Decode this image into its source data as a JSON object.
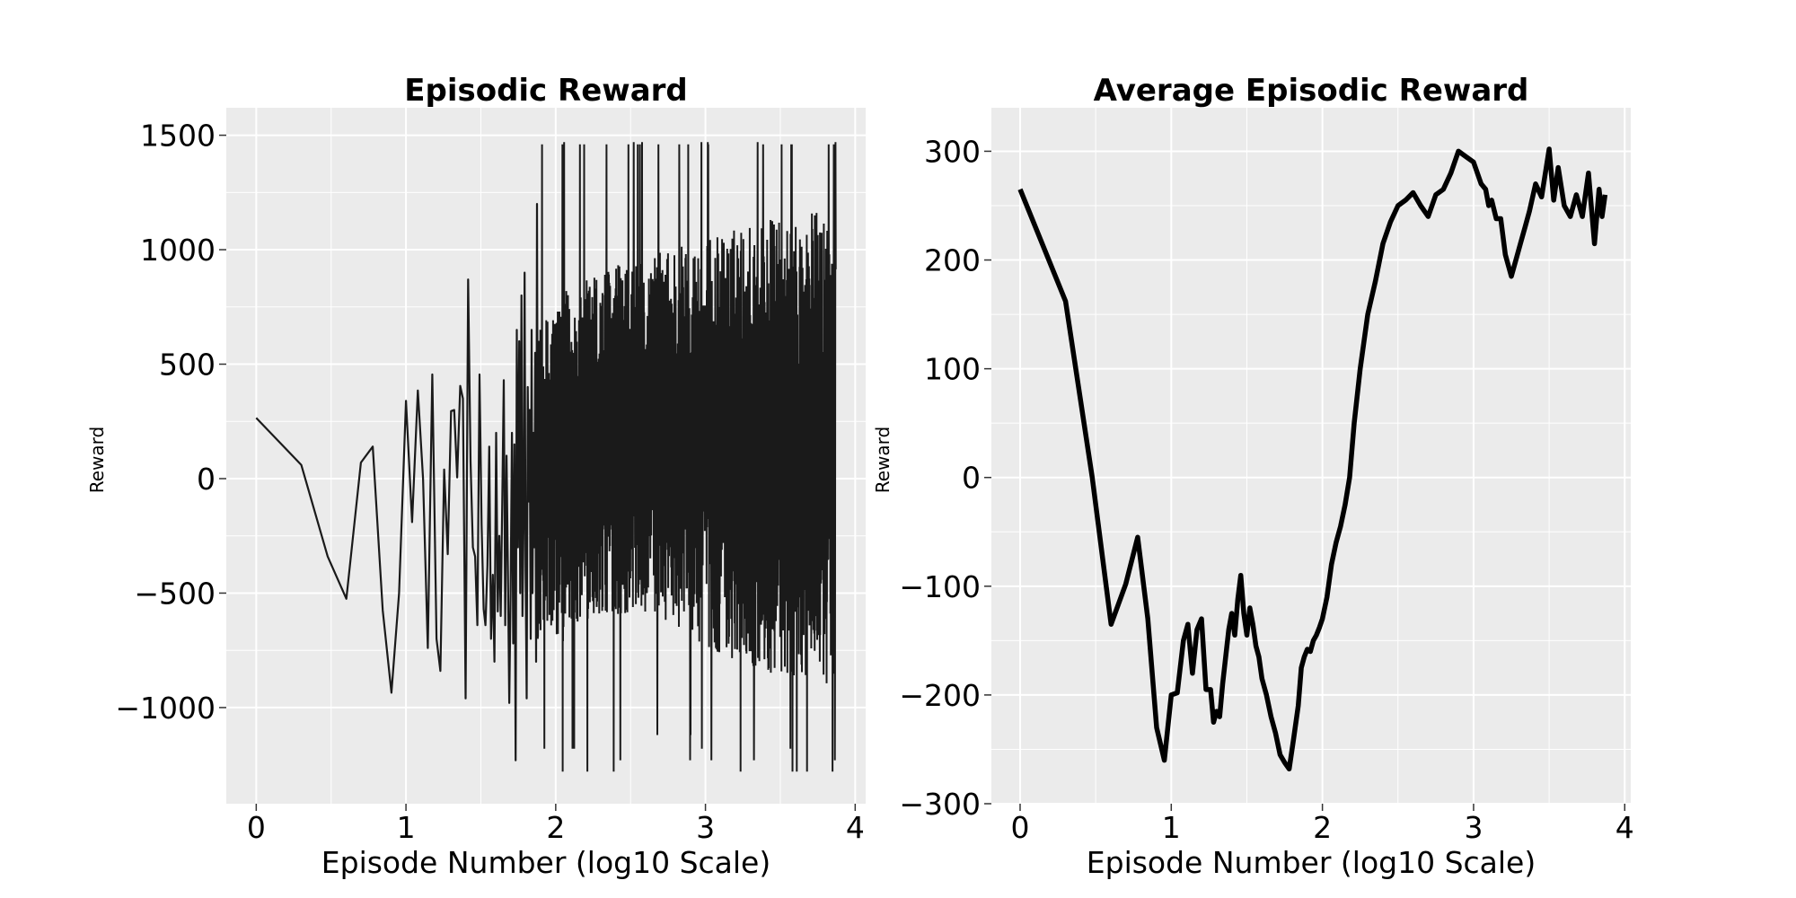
{
  "chart_data": [
    {
      "type": "line",
      "title": "Episodic Reward",
      "xlabel": "Episode Number (log10 Scale)",
      "ylabel": "Reward",
      "xlim": [
        -0.2,
        4.07
      ],
      "ylim": [
        -1420,
        1620
      ],
      "xticks": [
        0,
        1,
        2,
        3,
        4
      ],
      "xtick_labels": [
        "0",
        "1",
        "2",
        "3",
        "4"
      ],
      "yticks": [
        -1000,
        -500,
        0,
        500,
        1000,
        1500
      ],
      "ytick_labels": [
        "−1000",
        "−500",
        "0",
        "500",
        "1000",
        "1500"
      ],
      "grid": true,
      "background": "#ebebeb",
      "grid_color": "#ffffff",
      "line_color": "#1a1a1a",
      "x_end": 3.87,
      "series": [
        {
          "x": [
            0,
            0.301,
            0.477,
            0.602,
            0.699,
            0.778,
            0.845,
            0.903,
            0.954,
            1.0,
            1.041,
            1.079,
            1.114,
            1.146,
            1.176,
            1.204,
            1.23,
            1.255,
            1.279,
            1.301,
            1.322,
            1.342,
            1.362,
            1.38,
            1.398,
            1.415,
            1.431,
            1.447,
            1.462,
            1.477,
            1.491,
            1.505,
            1.519,
            1.531,
            1.544,
            1.556,
            1.568,
            1.58,
            1.591,
            1.602,
            1.613,
            1.623,
            1.633,
            1.643,
            1.653,
            1.663,
            1.672,
            1.681,
            1.69,
            1.699,
            1.708,
            1.716,
            1.724,
            1.732,
            1.74,
            1.748,
            1.756,
            1.763,
            1.771,
            1.778,
            1.785,
            1.792,
            1.799,
            1.806,
            1.813,
            1.82,
            1.826,
            1.833,
            1.839,
            1.845,
            1.851,
            1.857,
            1.863,
            1.869,
            1.875,
            1.881
          ],
          "y": [
            265,
            60,
            -340,
            -525,
            70,
            140,
            -575,
            -935,
            -500,
            340,
            -190,
            385,
            0,
            -740,
            455,
            -700,
            -840,
            40,
            -330,
            295,
            300,
            5,
            405,
            350,
            -960,
            870,
            75,
            -300,
            -340,
            -640,
            455,
            -200,
            -570,
            -640,
            -380,
            140,
            -700,
            -420,
            -800,
            200,
            -580,
            -250,
            -600,
            -100,
            430,
            -640,
            100,
            -400,
            -980,
            -500,
            200,
            -720,
            150,
            -1230,
            650,
            -300,
            600,
            -500,
            800,
            -600,
            -200,
            900,
            -400,
            -960,
            400,
            -100,
            300,
            -700,
            650,
            -500,
            200,
            -300,
            550,
            -800,
            1200,
            -400
          ]
        }
      ],
      "dense_band": {
        "x": [
          1.88,
          2.0,
          2.2,
          2.4,
          2.6,
          2.8,
          3.0,
          3.2,
          3.4,
          3.6,
          3.8,
          3.87
        ],
        "upper": [
          650,
          800,
          900,
          950,
          950,
          1050,
          1050,
          1100,
          1150,
          1150,
          1200,
          1150
        ],
        "lower": [
          -700,
          -750,
          -650,
          -600,
          -600,
          -650,
          -750,
          -800,
          -850,
          -900,
          -900,
          -950
        ],
        "peak_max": [
          1460,
          1470,
          1460
        ],
        "extreme_min": [
          -1230,
          -1280,
          -1120,
          -1180
        ]
      }
    },
    {
      "type": "line",
      "title": "Average Episodic Reward",
      "xlabel": "Episode Number (log10 Scale)",
      "ylabel": "Reward",
      "xlim": [
        -0.19,
        4.04
      ],
      "ylim": [
        -300,
        340
      ],
      "xticks": [
        0,
        1,
        2,
        3,
        4
      ],
      "xtick_labels": [
        "0",
        "1",
        "2",
        "3",
        "4"
      ],
      "yticks": [
        -300,
        -200,
        -100,
        0,
        100,
        200,
        300
      ],
      "ytick_labels": [
        "−300",
        "−200",
        "−100",
        "0",
        "100",
        "200",
        "300"
      ],
      "grid": true,
      "background": "#ebebeb",
      "grid_color": "#ffffff",
      "line_color": "#000000",
      "series": [
        {
          "x": [
            0,
            0.301,
            0.477,
            0.602,
            0.699,
            0.778,
            0.845,
            0.903,
            0.954,
            1.0,
            1.04,
            1.08,
            1.11,
            1.14,
            1.17,
            1.2,
            1.23,
            1.26,
            1.28,
            1.3,
            1.32,
            1.34,
            1.36,
            1.38,
            1.4,
            1.42,
            1.44,
            1.46,
            1.48,
            1.5,
            1.52,
            1.54,
            1.56,
            1.58,
            1.6,
            1.63,
            1.66,
            1.69,
            1.72,
            1.75,
            1.78,
            1.81,
            1.84,
            1.86,
            1.88,
            1.9,
            1.92,
            1.94,
            1.96,
            1.98,
            2.0,
            2.03,
            2.06,
            2.09,
            2.12,
            2.15,
            2.18,
            2.21,
            2.25,
            2.3,
            2.35,
            2.4,
            2.45,
            2.5,
            2.55,
            2.6,
            2.65,
            2.7,
            2.75,
            2.8,
            2.85,
            2.9,
            2.95,
            3.0,
            3.05,
            3.08,
            3.1,
            3.12,
            3.15,
            3.18,
            3.21,
            3.25,
            3.28,
            3.31,
            3.34,
            3.37,
            3.41,
            3.45,
            3.5,
            3.53,
            3.56,
            3.6,
            3.64,
            3.68,
            3.72,
            3.76,
            3.8,
            3.83,
            3.85,
            3.87
          ],
          "y": [
            265,
            162,
            0,
            -135,
            -98,
            -55,
            -130,
            -230,
            -260,
            -200,
            -198,
            -150,
            -135,
            -180,
            -140,
            -130,
            -195,
            -195,
            -225,
            -215,
            -220,
            -190,
            -165,
            -140,
            -125,
            -145,
            -112,
            -90,
            -125,
            -145,
            -120,
            -135,
            -155,
            -165,
            -185,
            -200,
            -220,
            -235,
            -255,
            -262,
            -268,
            -240,
            -210,
            -175,
            -165,
            -158,
            -160,
            -150,
            -145,
            -138,
            -130,
            -110,
            -80,
            -60,
            -45,
            -25,
            0,
            50,
            100,
            150,
            180,
            215,
            235,
            250,
            255,
            262,
            250,
            240,
            260,
            265,
            280,
            300,
            295,
            290,
            270,
            265,
            250,
            255,
            238,
            238,
            205,
            185,
            200,
            215,
            230,
            245,
            270,
            258,
            302,
            255,
            285,
            250,
            240,
            260,
            240,
            280,
            215,
            265,
            240,
            260
          ],
          "stroke_width": 5.5
        }
      ]
    }
  ]
}
